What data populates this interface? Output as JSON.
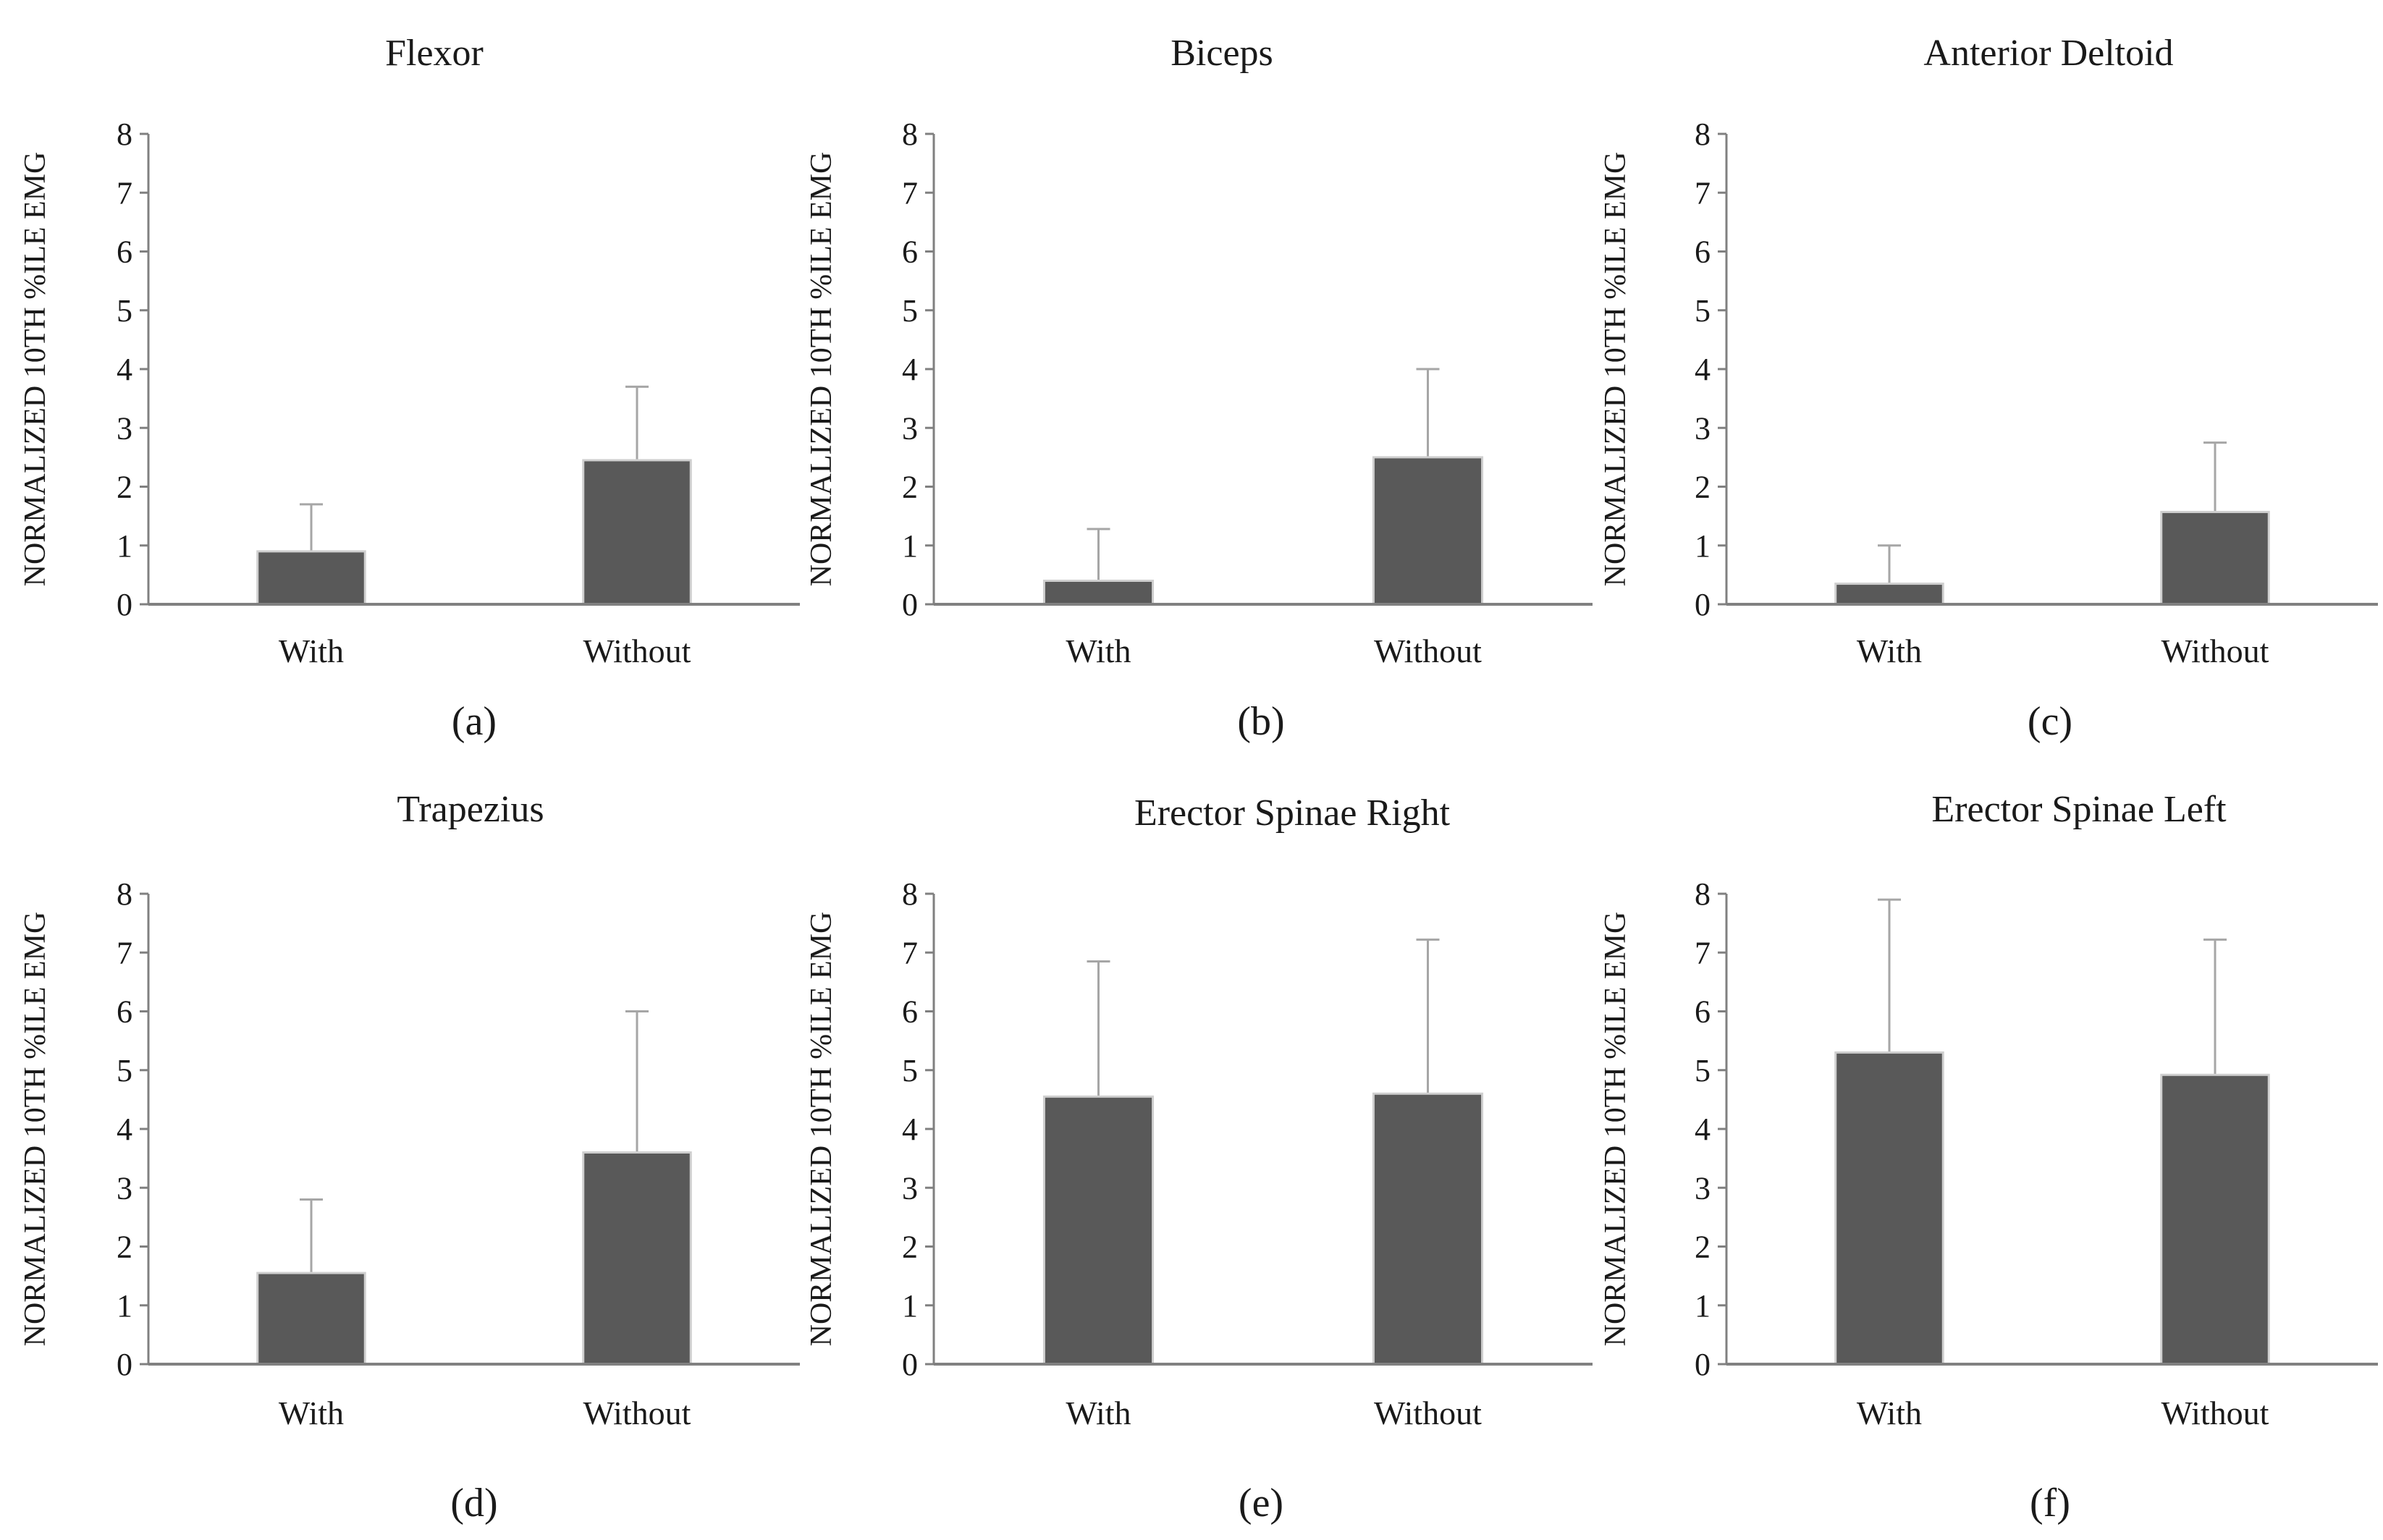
{
  "chart_data": [
    {
      "type": "bar",
      "panel": "(a)",
      "title": "Flexor",
      "ylabel": "NORMALIZED 10TH %ILE EMG",
      "xlabel": "",
      "categories": [
        "With",
        "Without"
      ],
      "values": [
        0.9,
        2.45
      ],
      "error_upper": [
        0.8,
        1.25
      ],
      "ylim": [
        0,
        8
      ],
      "yticks": [
        "0",
        "1",
        "2",
        "3",
        "4",
        "5",
        "6",
        "7",
        "8"
      ]
    },
    {
      "type": "bar",
      "panel": "(b)",
      "title": "Biceps",
      "ylabel": "NORMALIZED 10TH %ILE EMG",
      "xlabel": "",
      "categories": [
        "With",
        "Without"
      ],
      "values": [
        0.4,
        2.5
      ],
      "error_upper": [
        0.88,
        1.5
      ],
      "ylim": [
        0,
        8
      ],
      "yticks": [
        "0",
        "1",
        "2",
        "3",
        "4",
        "5",
        "6",
        "7",
        "8"
      ]
    },
    {
      "type": "bar",
      "panel": "(c)",
      "title": "Anterior Deltoid",
      "ylabel": "NORMALIZED 10TH %ILE EMG",
      "xlabel": "",
      "categories": [
        "With",
        "Without"
      ],
      "values": [
        0.35,
        1.57
      ],
      "error_upper": [
        0.65,
        1.18
      ],
      "ylim": [
        0,
        8
      ],
      "yticks": [
        "0",
        "1",
        "2",
        "3",
        "4",
        "5",
        "6",
        "7",
        "8"
      ]
    },
    {
      "type": "bar",
      "panel": "(d)",
      "title": "Trapezius",
      "ylabel": "NORMALIZED 10TH %ILE EMG",
      "xlabel": "",
      "categories": [
        "With",
        "Without"
      ],
      "values": [
        1.55,
        3.6
      ],
      "error_upper": [
        1.25,
        2.4
      ],
      "ylim": [
        0,
        8
      ],
      "yticks": [
        "0",
        "1",
        "2",
        "3",
        "4",
        "5",
        "6",
        "7",
        "8"
      ]
    },
    {
      "type": "bar",
      "panel": "(e)",
      "title": "Erector Spinae Right",
      "ylabel": "NORMALIZED 10TH %ILE EMG",
      "xlabel": "",
      "categories": [
        "With",
        "Without"
      ],
      "values": [
        4.55,
        4.6
      ],
      "error_upper": [
        2.3,
        2.62
      ],
      "ylim": [
        0,
        8
      ],
      "yticks": [
        "0",
        "1",
        "2",
        "3",
        "4",
        "5",
        "6",
        "7",
        "8"
      ]
    },
    {
      "type": "bar",
      "panel": "(f)",
      "title": "Erector Spinae Left",
      "ylabel": "NORMALIZED 10TH %ILE EMG",
      "xlabel": "",
      "categories": [
        "With",
        "Without"
      ],
      "values": [
        5.3,
        4.92
      ],
      "error_upper": [
        2.6,
        2.3
      ],
      "ylim": [
        0,
        8
      ],
      "yticks": [
        "0",
        "1",
        "2",
        "3",
        "4",
        "5",
        "6",
        "7",
        "8"
      ]
    }
  ],
  "colors": {
    "bar_fill": "#595959",
    "bar_edge": "#cfcfcf",
    "axis": "#808080",
    "error_bar": "#a6a6a6"
  }
}
